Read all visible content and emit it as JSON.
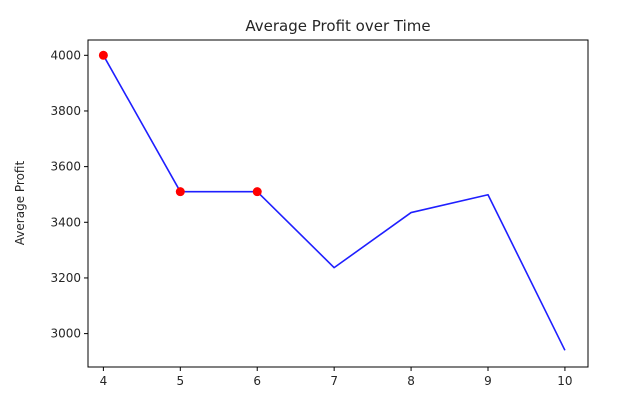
{
  "chart_data": {
    "type": "line",
    "title": "Average Profit over Time",
    "xlabel": "",
    "ylabel": "Average Profit",
    "x": [
      4,
      5,
      6,
      7,
      8,
      9,
      10
    ],
    "xlim": [
      3.8,
      10.3
    ],
    "ylim": [
      2880,
      4055
    ],
    "x_ticks": [
      4,
      5,
      6,
      7,
      8,
      9,
      10
    ],
    "y_ticks": [
      3000,
      3200,
      3400,
      3600,
      3800,
      4000
    ],
    "grid": false,
    "series": [
      {
        "values": [
          4000,
          3510,
          3510,
          3237,
          3435,
          3499,
          2940
        ],
        "color": "#1f1fff"
      }
    ],
    "highlighted_points": {
      "x": [
        4,
        5,
        6
      ],
      "y": [
        4000,
        3510,
        3510
      ],
      "color": "#ff0000"
    }
  }
}
